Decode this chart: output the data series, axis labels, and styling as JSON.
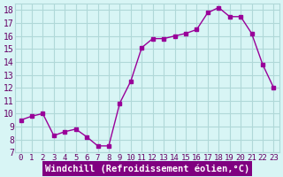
{
  "x": [
    0,
    1,
    2,
    3,
    4,
    5,
    6,
    7,
    8,
    9,
    10,
    11,
    12,
    13,
    14,
    15,
    16,
    17,
    18,
    19,
    20,
    21,
    22,
    23
  ],
  "y": [
    9.5,
    9.8,
    10.0,
    8.3,
    8.6,
    8.8,
    8.2,
    7.5,
    7.5,
    10.8,
    12.5,
    15.1,
    15.8,
    15.8,
    16.0,
    16.2,
    16.5,
    17.8,
    18.2,
    17.5,
    17.5,
    16.2,
    13.8,
    12.0
  ],
  "line_color": "#990099",
  "marker": "s",
  "marker_size": 3,
  "bg_color": "#d8f5f5",
  "grid_color": "#b0d8d8",
  "xlabel": "Windchill (Refroidissement éolien,°C)",
  "xlabel_color": "#ffffff",
  "xlabel_bg": "#800080",
  "ylabel_ticks": [
    7,
    8,
    9,
    10,
    11,
    12,
    13,
    14,
    15,
    16,
    17,
    18
  ],
  "ylim": [
    7,
    18.5
  ],
  "xlim": [
    0,
    23
  ],
  "tick_fontsize": 7,
  "label_fontsize": 7.5
}
